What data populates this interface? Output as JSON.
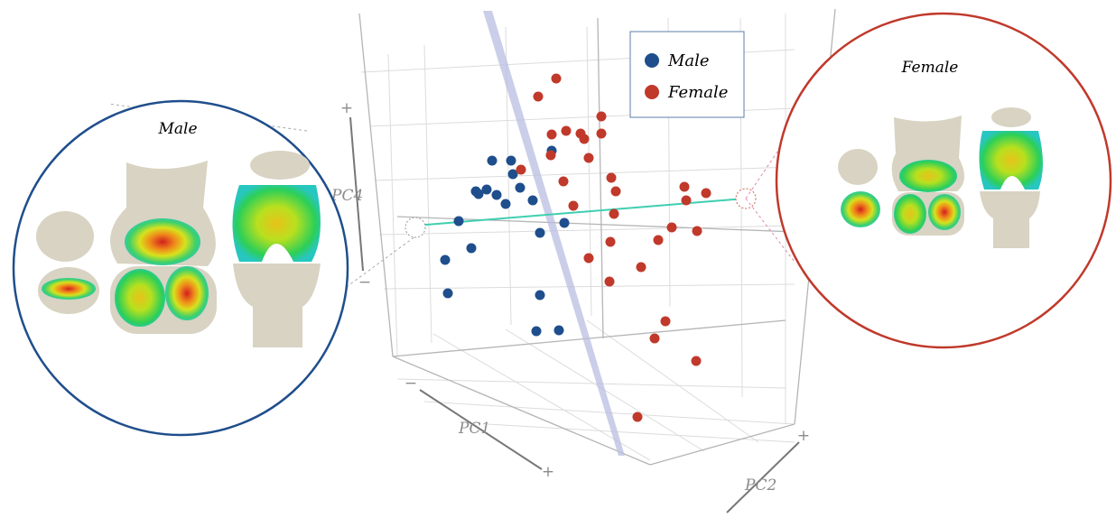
{
  "legend": {
    "items": [
      "Male",
      "Female"
    ]
  },
  "panels": {
    "left": {
      "title": "Male"
    },
    "right": {
      "title": "Female"
    }
  },
  "axes": {
    "pc4": {
      "label": "PC4",
      "plus": "+",
      "minus": "−"
    },
    "pc1": {
      "label": "PC1",
      "plus": "+",
      "minus": "−"
    },
    "pc2": {
      "label": "PC2",
      "plus": "+"
    }
  }
}
